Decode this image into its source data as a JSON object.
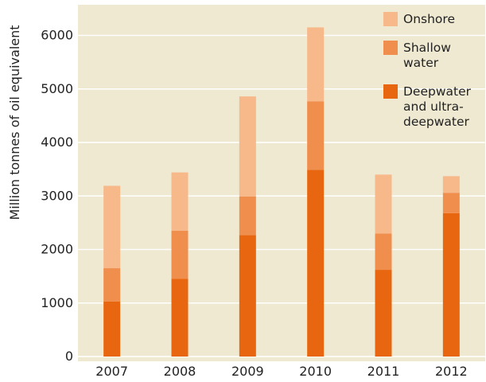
{
  "chart_data": {
    "type": "bar",
    "stacked": true,
    "title": "",
    "xlabel": "",
    "ylabel": "Million tonnes of oil equivalent",
    "ylim": [
      0,
      6500
    ],
    "yticks": [
      "0",
      "1000",
      "2000",
      "3000",
      "4000",
      "5000",
      "6000"
    ],
    "grid": true,
    "legend_position": "top-right",
    "categories": [
      "2007",
      "2008",
      "2009",
      "2010",
      "2011",
      "2012"
    ],
    "series": [
      {
        "name": "Deepwater and ultra-deepwater",
        "legend_lines": [
          "Deepwater",
          "and ultra-",
          "deepwater"
        ],
        "color": "#E8660F",
        "values": [
          1030,
          1450,
          2270,
          3490,
          1620,
          2680
        ]
      },
      {
        "name": "Shallow water",
        "legend_lines": [
          "Shallow",
          "water"
        ],
        "color": "#F08E4E",
        "values": [
          620,
          900,
          720,
          1280,
          680,
          380
        ]
      },
      {
        "name": "Onshore",
        "legend_lines": [
          "Onshore"
        ],
        "color": "#F7B88A",
        "values": [
          1540,
          1090,
          1870,
          1380,
          1100,
          310
        ]
      }
    ],
    "colors": {
      "plot_background": "#EFE9D1",
      "gridline": "#FFFFFF"
    }
  }
}
